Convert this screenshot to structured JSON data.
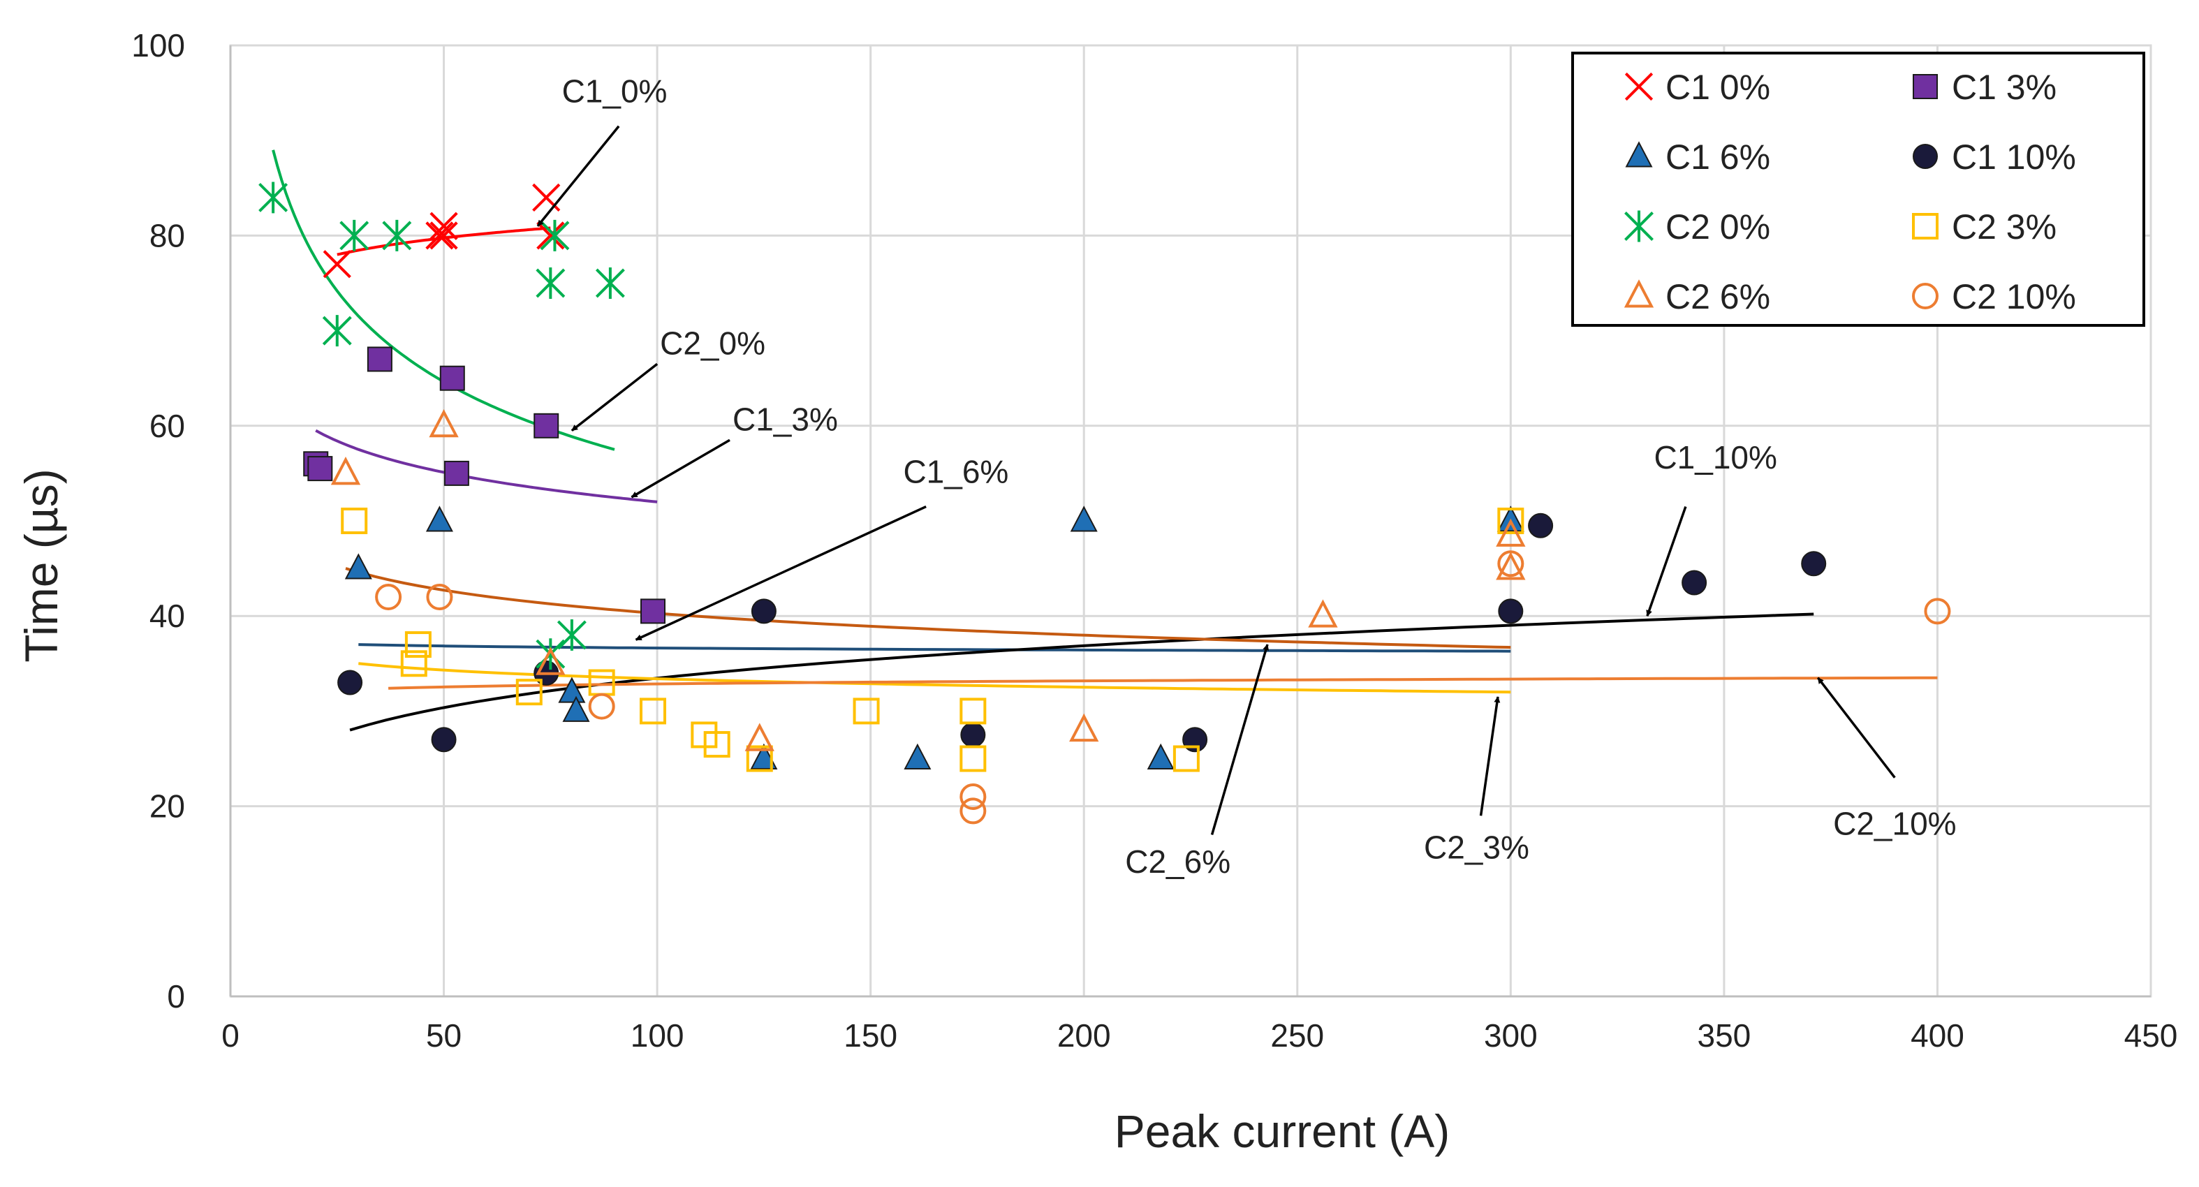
{
  "chart_data": {
    "type": "scatter",
    "title": "",
    "xlabel": "Peak current (A)",
    "ylabel": "Time (µs)",
    "xlim": [
      0,
      450
    ],
    "ylim": [
      0,
      100
    ],
    "xticks": [
      0,
      50,
      100,
      150,
      200,
      250,
      300,
      350,
      400,
      450
    ],
    "yticks": [
      0,
      20,
      40,
      60,
      80,
      100
    ],
    "grid": true,
    "legend_position": "top-right",
    "series": [
      {
        "name": "C1 0%",
        "marker": "x",
        "color": "#ff0000",
        "filled": false,
        "points": [
          [
            25,
            77
          ],
          [
            49,
            80
          ],
          [
            50,
            81
          ],
          [
            50,
            80
          ],
          [
            74,
            84
          ],
          [
            75,
            80
          ]
        ]
      },
      {
        "name": "C1 3%",
        "marker": "square",
        "color": "#7030a0",
        "filled": true,
        "points": [
          [
            20,
            56
          ],
          [
            21,
            55.5
          ],
          [
            35,
            67
          ],
          [
            52,
            65
          ],
          [
            53,
            55
          ],
          [
            74,
            60
          ],
          [
            99,
            40.5
          ]
        ]
      },
      {
        "name": "C1 6%",
        "marker": "triangle",
        "color": "#1f6fb5",
        "filled": true,
        "points": [
          [
            30,
            45
          ],
          [
            49,
            50
          ],
          [
            80,
            32
          ],
          [
            81,
            30
          ],
          [
            125,
            25
          ],
          [
            161,
            25
          ],
          [
            200,
            50
          ],
          [
            218,
            25
          ],
          [
            300,
            50
          ]
        ]
      },
      {
        "name": "C1 10%",
        "marker": "circle",
        "color": "#1a1a3a",
        "filled": true,
        "points": [
          [
            28,
            33
          ],
          [
            50,
            27
          ],
          [
            74,
            34
          ],
          [
            125,
            40.5
          ],
          [
            174,
            27.5
          ],
          [
            226,
            27
          ],
          [
            300,
            40.5
          ],
          [
            307,
            49.5
          ],
          [
            343,
            43.5
          ],
          [
            371,
            45.5
          ]
        ]
      },
      {
        "name": "C2 0%",
        "marker": "asterisk",
        "color": "#00b050",
        "filled": false,
        "points": [
          [
            10,
            84
          ],
          [
            25,
            70
          ],
          [
            29,
            80
          ],
          [
            39,
            80
          ],
          [
            75,
            75
          ],
          [
            76,
            80
          ],
          [
            75,
            36
          ],
          [
            80,
            38
          ],
          [
            89,
            75
          ]
        ]
      },
      {
        "name": "C2 3%",
        "marker": "square",
        "color": "#ffc000",
        "filled": false,
        "points": [
          [
            29,
            50
          ],
          [
            43,
            35
          ],
          [
            44,
            37
          ],
          [
            70,
            32
          ],
          [
            87,
            33
          ],
          [
            99,
            30
          ],
          [
            111,
            27.5
          ],
          [
            114,
            26.5
          ],
          [
            124,
            25
          ],
          [
            149,
            30
          ],
          [
            174,
            30
          ],
          [
            174,
            25
          ],
          [
            224,
            25
          ],
          [
            300,
            50
          ]
        ]
      },
      {
        "name": "C2 6%",
        "marker": "triangle",
        "color": "#ed7d31",
        "filled": false,
        "points": [
          [
            27,
            55
          ],
          [
            50,
            60
          ],
          [
            75,
            35
          ],
          [
            124,
            27
          ],
          [
            200,
            28
          ],
          [
            256,
            40
          ],
          [
            300,
            48.5
          ],
          [
            300,
            45
          ]
        ]
      },
      {
        "name": "C2 10%",
        "marker": "circle",
        "color": "#ed7d31",
        "filled": false,
        "points": [
          [
            37,
            42
          ],
          [
            49,
            42
          ],
          [
            87,
            30.5
          ],
          [
            174,
            21
          ],
          [
            174,
            19.5
          ],
          [
            300,
            45.5
          ],
          [
            400,
            40.5
          ]
        ]
      }
    ],
    "trendlines": [
      {
        "name": "C1_0%",
        "color": "#ff0000",
        "kind": "power",
        "x_range": [
          25,
          75
        ],
        "start": [
          25,
          78
        ],
        "end": [
          75,
          80.8
        ]
      },
      {
        "name": "C2_0%",
        "color": "#00b050",
        "kind": "power",
        "x_range": [
          10,
          90
        ],
        "start": [
          10,
          89
        ],
        "end": [
          90,
          57.5
        ]
      },
      {
        "name": "C1_3%",
        "color": "#7030a0",
        "kind": "power",
        "x_range": [
          20,
          100
        ],
        "start": [
          20,
          59.5
        ],
        "end": [
          100,
          52
        ]
      },
      {
        "name": "C1_6%",
        "color": "#1f4e79",
        "kind": "power",
        "x_range": [
          30,
          300
        ],
        "start": [
          30,
          37
        ],
        "end": [
          300,
          36.3
        ]
      },
      {
        "name": "C1_10%",
        "color": "#000000",
        "kind": "power",
        "x_range": [
          28,
          371
        ],
        "start": [
          28,
          28
        ],
        "end": [
          371,
          40.2
        ]
      },
      {
        "name": "C2_3%",
        "color": "#ffc000",
        "kind": "power",
        "x_range": [
          30,
          300
        ],
        "start": [
          30,
          35
        ],
        "end": [
          300,
          32
        ]
      },
      {
        "name": "C2_6%",
        "color": "#c55a11",
        "kind": "power",
        "x_range": [
          27,
          300
        ],
        "start": [
          27,
          45
        ],
        "end": [
          300,
          36.7
        ]
      },
      {
        "name": "C2_10%",
        "color": "#ed7d31",
        "kind": "power",
        "x_range": [
          37,
          400
        ],
        "start": [
          37,
          32.4
        ],
        "end": [
          400,
          33.5
        ]
      }
    ],
    "annotations": [
      {
        "text": "C1_0%",
        "label_at": [
          90,
          94
        ],
        "arrow_from": [
          91,
          91.5
        ],
        "arrow_to": [
          72,
          81
        ]
      },
      {
        "text": "C2_0%",
        "label_at": [
          113,
          67.5
        ],
        "arrow_from": [
          100,
          66.5
        ],
        "arrow_to": [
          80,
          59.5
        ]
      },
      {
        "text": "C1_3%",
        "label_at": [
          130,
          59.5
        ],
        "arrow_from": [
          117,
          58.5
        ],
        "arrow_to": [
          94,
          52.5
        ]
      },
      {
        "text": "C1_6%",
        "label_at": [
          170,
          54
        ],
        "arrow_from": [
          163,
          51.5
        ],
        "arrow_to": [
          95,
          37.5
        ]
      },
      {
        "text": "C1_10%",
        "label_at": [
          348,
          55.5
        ],
        "arrow_from": [
          341,
          51.5
        ],
        "arrow_to": [
          332,
          40
        ]
      },
      {
        "text": "C2_6%",
        "label_at": [
          222,
          13
        ],
        "arrow_from": [
          230,
          17
        ],
        "arrow_to": [
          243,
          37
        ]
      },
      {
        "text": "C2_3%",
        "label_at": [
          292,
          14.5
        ],
        "arrow_from": [
          293,
          19
        ],
        "arrow_to": [
          297,
          31.5
        ]
      },
      {
        "text": "C2_10%",
        "label_at": [
          390,
          17
        ],
        "arrow_from": [
          390,
          23
        ],
        "arrow_to": [
          372,
          33.5
        ]
      }
    ]
  }
}
